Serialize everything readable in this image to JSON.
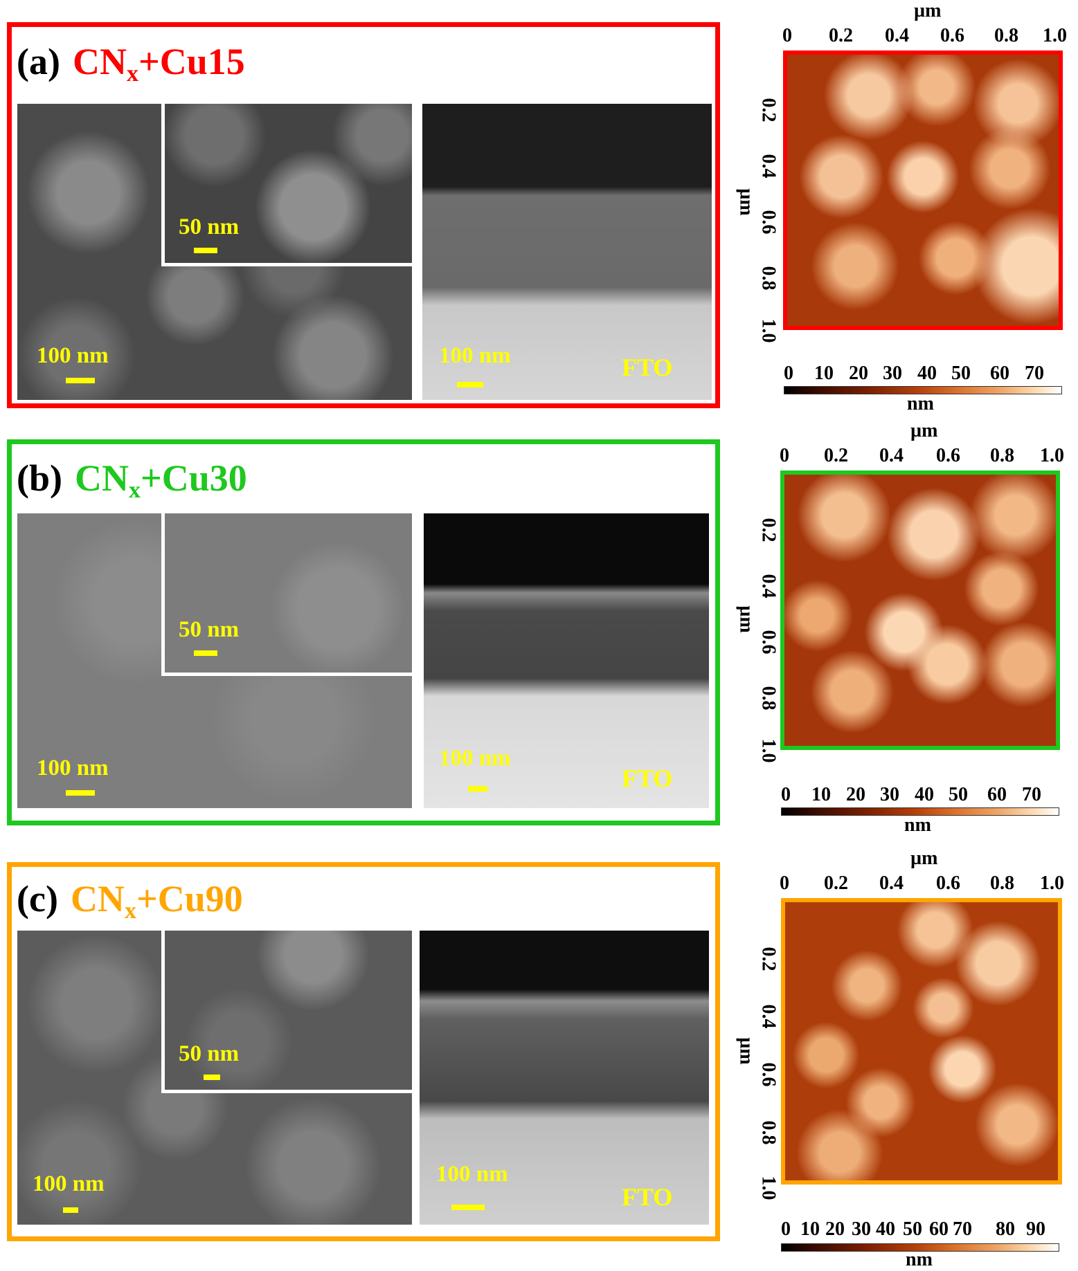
{
  "panels": [
    {
      "letter": "(a)",
      "name_main": "CN",
      "name_sub": "x",
      "name_tail": "+Cu15",
      "color": "#ff0000",
      "sem_scale": "100 nm",
      "inset_scale": "50 nm",
      "xsec_scale": "100 nm",
      "substrate": "FTO"
    },
    {
      "letter": "(b)",
      "name_main": "CN",
      "name_sub": "x",
      "name_tail": "+Cu30",
      "color": "#1ec81e",
      "sem_scale": "100 nm",
      "inset_scale": "50 nm",
      "xsec_scale": "100 nm",
      "substrate": "FTO"
    },
    {
      "letter": "(c)",
      "name_main": "CN",
      "name_sub": "x",
      "name_tail": "+Cu90",
      "color": "#ffa500",
      "sem_scale": "100 nm",
      "inset_scale": "50 nm",
      "xsec_scale": "100 nm",
      "substrate": "FTO"
    }
  ],
  "afm": [
    {
      "axis_unit": "µm",
      "x_ticks": [
        "0",
        "0.2",
        "0.4",
        "0.6",
        "0.8",
        "1.0"
      ],
      "y_ticks": [
        "0.2",
        "0.4",
        "0.6",
        "0.8",
        "1.0"
      ],
      "colorbar_ticks": [
        "0",
        "10",
        "20",
        "30",
        "40",
        "50",
        "60",
        "70"
      ],
      "colorbar_unit": "nm",
      "border_color": "#ff0000"
    },
    {
      "axis_unit": "µm",
      "x_ticks": [
        "0",
        "0.2",
        "0.4",
        "0.6",
        "0.8",
        "1.0"
      ],
      "y_ticks": [
        "0.2",
        "0.4",
        "0.6",
        "0.8",
        "1.0"
      ],
      "colorbar_ticks": [
        "0",
        "10",
        "20",
        "30",
        "40",
        "50",
        "60",
        "70"
      ],
      "colorbar_unit": "nm",
      "border_color": "#1ec81e"
    },
    {
      "axis_unit": "µm",
      "x_ticks": [
        "0",
        "0.2",
        "0.4",
        "0.6",
        "0.8",
        "1.0"
      ],
      "y_ticks": [
        "0.2",
        "0.4",
        "0.6",
        "0.8",
        "1.0"
      ],
      "colorbar_ticks": [
        "0",
        "10",
        "20",
        "30 40",
        "50",
        "60",
        "70",
        "80",
        "90"
      ],
      "colorbar_unit": "nm",
      "border_color": "#ffa500"
    }
  ]
}
